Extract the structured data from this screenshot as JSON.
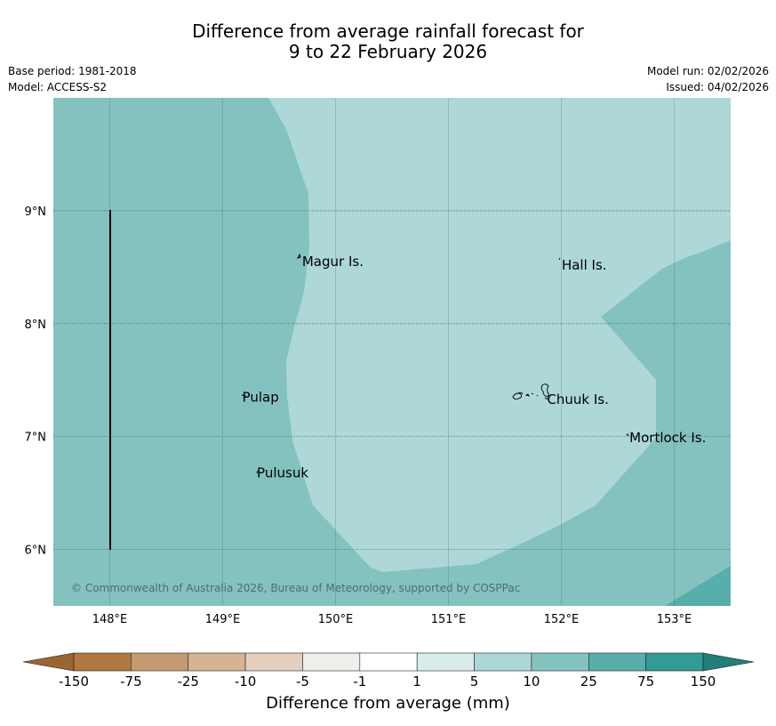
{
  "title": {
    "line1": "Difference from average rainfall forecast for",
    "line2": "9 to 22 February 2026"
  },
  "meta": {
    "base_period": "Base period: 1981-2018",
    "model": "Model: ACCESS-S2",
    "model_run": "Model run: 02/02/2026",
    "issued": "Issued: 04/02/2026"
  },
  "map": {
    "lon_range": [
      147.5,
      153.5
    ],
    "lat_range": [
      5.5,
      10.0
    ],
    "lat_ticks": [
      {
        "value": 9,
        "label": "9°N"
      },
      {
        "value": 8,
        "label": "8°N"
      },
      {
        "value": 7,
        "label": "7°N"
      },
      {
        "value": 6,
        "label": "6°N"
      }
    ],
    "lon_ticks": [
      {
        "value": 148,
        "label": "148°E"
      },
      {
        "value": 149,
        "label": "149°E"
      },
      {
        "value": 150,
        "label": "150°E"
      },
      {
        "value": 151,
        "label": "151°E"
      },
      {
        "value": 152,
        "label": "152°E"
      },
      {
        "value": 153,
        "label": "153°E"
      }
    ],
    "places": [
      {
        "name": "Magur Is.",
        "lon": 149.68,
        "lat": 8.55
      },
      {
        "name": "Hall Is.",
        "lon": 151.98,
        "lat": 8.52
      },
      {
        "name": "Pulap",
        "lon": 149.15,
        "lat": 7.35
      },
      {
        "name": "Chuuk Is.",
        "lon": 151.85,
        "lat": 7.33
      },
      {
        "name": "Mortlock Is.",
        "lon": 152.58,
        "lat": 6.99
      },
      {
        "name": "Pulusuk",
        "lon": 149.28,
        "lat": 6.68
      }
    ],
    "copyright": "© Commonwealth of Australia 2026, Bureau of Meteorology, supported by COSPPac",
    "colors": {
      "band_5_10": "#add8d7",
      "band_10_25": "#84c2c0",
      "band_25_75": "#58aeaa",
      "grid": "#2c4c4a"
    }
  },
  "legend": {
    "title": "Difference from average (mm)",
    "bins": [
      {
        "color": "#b07840"
      },
      {
        "color": "#c49a70"
      },
      {
        "color": "#d5b392"
      },
      {
        "color": "#e4cfbf"
      },
      {
        "color": "#efeeea"
      },
      {
        "color": "#ffffff"
      },
      {
        "color": "#d9ecec"
      },
      {
        "color": "#add8d7"
      },
      {
        "color": "#84c2c0"
      },
      {
        "color": "#58aeaa"
      },
      {
        "color": "#349a96"
      }
    ],
    "low_arrow_color": "#9a6530",
    "high_arrow_color": "#237d79",
    "labels": [
      "-150",
      "-75",
      "-25",
      "-10",
      "-5",
      "-1",
      "1",
      "5",
      "10",
      "25",
      "75",
      "150"
    ]
  }
}
